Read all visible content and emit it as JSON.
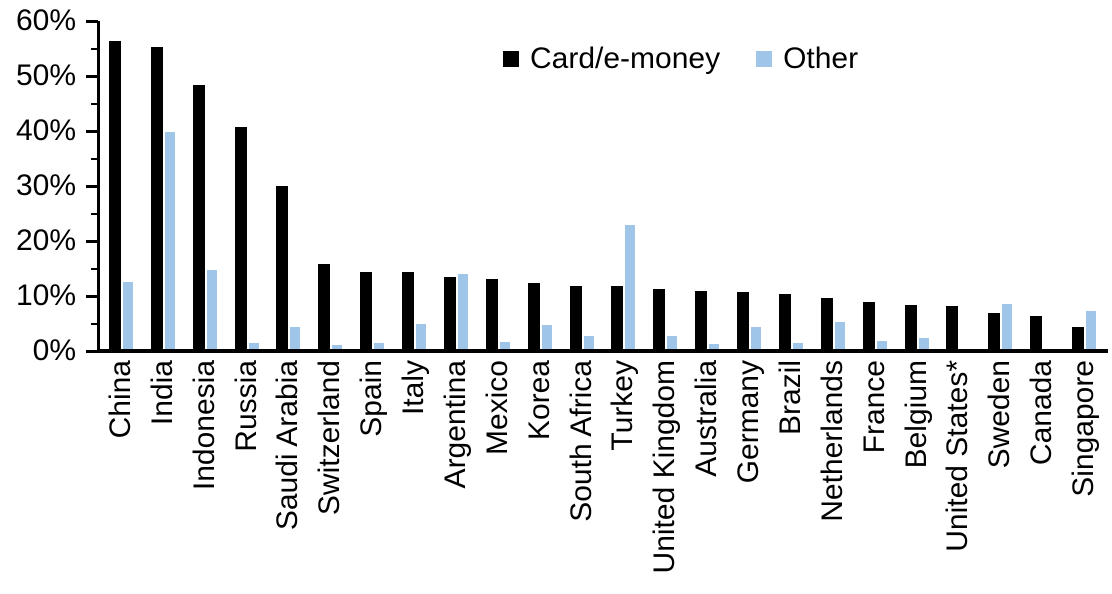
{
  "chart_data": {
    "type": "bar",
    "title": "",
    "xlabel": "",
    "ylabel": "",
    "ylim": [
      0,
      60
    ],
    "ytick_interval": 10,
    "minor_tick_interval": 5,
    "ytick_labels": [
      "0%",
      "10%",
      "20%",
      "30%",
      "40%",
      "50%",
      "60%"
    ],
    "grid": false,
    "legend_position": "top-center",
    "categories": [
      "China",
      "India",
      "Indonesia",
      "Russia",
      "Saudi Arabia",
      "Switzerland",
      "Spain",
      "Italy",
      "Argentina",
      "Mexico",
      "Korea",
      "South Africa",
      "Turkey",
      "United Kingdom",
      "Australia",
      "Germany",
      "Brazil",
      "Netherlands",
      "France",
      "Belgium",
      "United States*",
      "Sweden",
      "Canada",
      "Singapore"
    ],
    "series": [
      {
        "name": "Card/e-money",
        "color": "#000000",
        "values": [
          56.3,
          55.2,
          48.4,
          40.7,
          30.0,
          15.8,
          14.4,
          14.3,
          13.5,
          13.1,
          12.4,
          11.9,
          11.9,
          11.3,
          11.0,
          10.8,
          10.3,
          9.6,
          9.0,
          8.4,
          8.2,
          7.0,
          6.4,
          4.4
        ]
      },
      {
        "name": "Other",
        "color": "#9FC5E8",
        "values": [
          12.5,
          39.8,
          14.7,
          1.4,
          4.4,
          1.1,
          1.4,
          4.9,
          14.0,
          1.6,
          4.8,
          2.8,
          22.9,
          2.7,
          1.2,
          4.4,
          1.5,
          5.2,
          1.9,
          2.4,
          0.4,
          8.5,
          0.0,
          7.3
        ]
      }
    ]
  }
}
